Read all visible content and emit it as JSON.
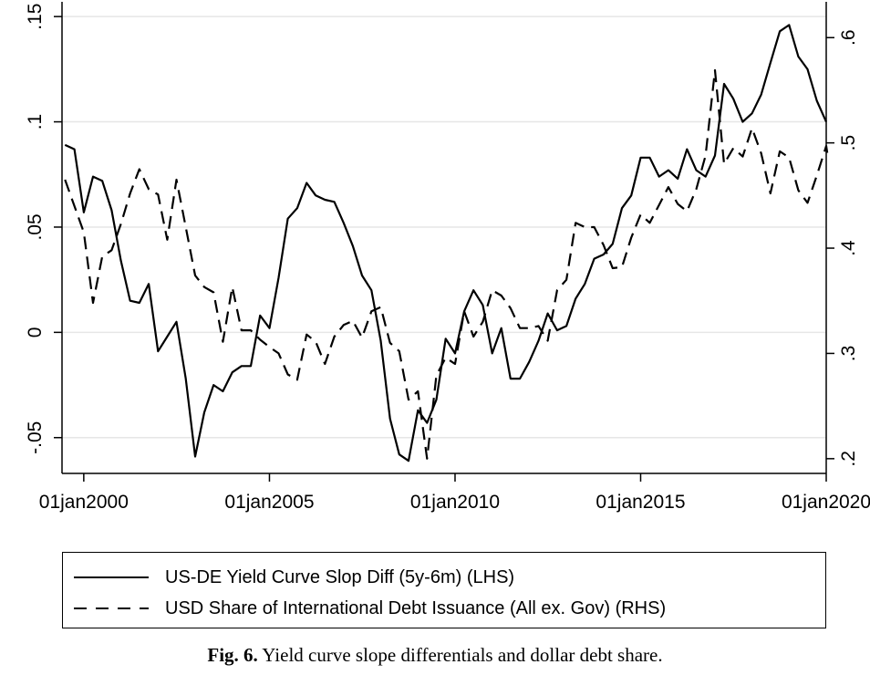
{
  "chart_data": {
    "type": "line",
    "xlim": [
      "1999-06-01",
      "2020-01-01"
    ],
    "x_ticks": [
      "01jan2000",
      "01jan2005",
      "01jan2010",
      "01jan2015",
      "01jan2020"
    ],
    "y_left": {
      "ticks": [
        "-.05",
        "0",
        ".05",
        ".1",
        ".15"
      ],
      "lim": [
        -0.067,
        0.157
      ]
    },
    "y_right": {
      "ticks": [
        ".2",
        ".3",
        ".4",
        ".5",
        ".6"
      ],
      "lim": [
        0.186,
        0.634
      ]
    },
    "grid": true,
    "legend_position": "bottom",
    "series": [
      {
        "name": "US-DE Yield Curve Slop Diff (5y-6m) (LHS)",
        "axis": "left",
        "style": "solid",
        "points": [
          [
            "1999-07-01",
            0.089
          ],
          [
            "1999-10-01",
            0.087
          ],
          [
            "2000-01-01",
            0.057
          ],
          [
            "2000-04-01",
            0.074
          ],
          [
            "2000-07-01",
            0.072
          ],
          [
            "2000-10-01",
            0.058
          ],
          [
            "2001-01-01",
            0.034
          ],
          [
            "2001-04-01",
            0.015
          ],
          [
            "2001-07-01",
            0.014
          ],
          [
            "2001-10-01",
            0.023
          ],
          [
            "2002-01-01",
            -0.009
          ],
          [
            "2002-04-01",
            -0.002
          ],
          [
            "2002-07-01",
            0.005
          ],
          [
            "2002-10-01",
            -0.022
          ],
          [
            "2003-01-01",
            -0.059
          ],
          [
            "2003-04-01",
            -0.038
          ],
          [
            "2003-07-01",
            -0.025
          ],
          [
            "2003-10-01",
            -0.028
          ],
          [
            "2004-01-01",
            -0.019
          ],
          [
            "2004-04-01",
            -0.016
          ],
          [
            "2004-07-01",
            -0.016
          ],
          [
            "2004-10-01",
            0.008
          ],
          [
            "2005-01-01",
            0.002
          ],
          [
            "2005-04-01",
            0.026
          ],
          [
            "2005-07-01",
            0.054
          ],
          [
            "2005-10-01",
            0.059
          ],
          [
            "2006-01-01",
            0.071
          ],
          [
            "2006-04-01",
            0.065
          ],
          [
            "2006-07-01",
            0.063
          ],
          [
            "2006-10-01",
            0.062
          ],
          [
            "2007-01-01",
            0.052
          ],
          [
            "2007-04-01",
            0.041
          ],
          [
            "2007-07-01",
            0.027
          ],
          [
            "2007-10-01",
            0.02
          ],
          [
            "2008-01-01",
            -0.004
          ],
          [
            "2008-04-01",
            -0.041
          ],
          [
            "2008-07-01",
            -0.058
          ],
          [
            "2008-10-01",
            -0.061
          ],
          [
            "2009-01-01",
            -0.037
          ],
          [
            "2009-04-01",
            -0.043
          ],
          [
            "2009-07-01",
            -0.032
          ],
          [
            "2009-10-01",
            -0.003
          ],
          [
            "2010-01-01",
            -0.01
          ],
          [
            "2010-04-01",
            0.01
          ],
          [
            "2010-07-01",
            0.02
          ],
          [
            "2010-10-01",
            0.013
          ],
          [
            "2011-01-01",
            -0.01
          ],
          [
            "2011-04-01",
            0.002
          ],
          [
            "2011-07-01",
            -0.022
          ],
          [
            "2011-10-01",
            -0.022
          ],
          [
            "2012-01-01",
            -0.014
          ],
          [
            "2012-04-01",
            -0.004
          ],
          [
            "2012-07-01",
            0.009
          ],
          [
            "2012-10-01",
            0.001
          ],
          [
            "2013-01-01",
            0.003
          ],
          [
            "2013-04-01",
            0.016
          ],
          [
            "2013-07-01",
            0.023
          ],
          [
            "2013-10-01",
            0.035
          ],
          [
            "2014-01-01",
            0.037
          ],
          [
            "2014-04-01",
            0.042
          ],
          [
            "2014-07-01",
            0.059
          ],
          [
            "2014-10-01",
            0.065
          ],
          [
            "2015-01-01",
            0.083
          ],
          [
            "2015-04-01",
            0.083
          ],
          [
            "2015-07-01",
            0.074
          ],
          [
            "2015-10-01",
            0.077
          ],
          [
            "2016-01-01",
            0.073
          ],
          [
            "2016-04-01",
            0.087
          ],
          [
            "2016-07-01",
            0.077
          ],
          [
            "2016-10-01",
            0.074
          ],
          [
            "2017-01-01",
            0.084
          ],
          [
            "2017-04-01",
            0.118
          ],
          [
            "2017-07-01",
            0.111
          ],
          [
            "2017-10-01",
            0.1
          ],
          [
            "2018-01-01",
            0.104
          ],
          [
            "2018-04-01",
            0.113
          ],
          [
            "2018-07-01",
            0.128
          ],
          [
            "2018-10-01",
            0.143
          ],
          [
            "2019-01-01",
            0.146
          ],
          [
            "2019-04-01",
            0.131
          ],
          [
            "2019-07-01",
            0.125
          ],
          [
            "2019-10-01",
            0.11
          ],
          [
            "2020-01-01",
            0.1
          ]
        ]
      },
      {
        "name": "USD Share of International Debt Issuance (All ex. Gov) (RHS)",
        "axis": "right",
        "style": "dashed",
        "points": [
          [
            "1999-07-01",
            0.465
          ],
          [
            "1999-10-01",
            0.44
          ],
          [
            "2000-01-01",
            0.415
          ],
          [
            "2000-04-01",
            0.348
          ],
          [
            "2000-07-01",
            0.392
          ],
          [
            "2000-10-01",
            0.398
          ],
          [
            "2001-01-01",
            0.423
          ],
          [
            "2001-04-01",
            0.452
          ],
          [
            "2001-07-01",
            0.475
          ],
          [
            "2001-10-01",
            0.456
          ],
          [
            "2002-01-01",
            0.451
          ],
          [
            "2002-04-01",
            0.408
          ],
          [
            "2002-07-01",
            0.465
          ],
          [
            "2002-10-01",
            0.42
          ],
          [
            "2003-01-01",
            0.374
          ],
          [
            "2003-04-01",
            0.363
          ],
          [
            "2003-07-01",
            0.358
          ],
          [
            "2003-10-01",
            0.311
          ],
          [
            "2004-01-01",
            0.363
          ],
          [
            "2004-04-01",
            0.322
          ],
          [
            "2004-07-01",
            0.322
          ],
          [
            "2004-10-01",
            0.313
          ],
          [
            "2005-01-01",
            0.306
          ],
          [
            "2005-04-01",
            0.3
          ],
          [
            "2005-07-01",
            0.28
          ],
          [
            "2005-10-01",
            0.275
          ],
          [
            "2006-01-01",
            0.318
          ],
          [
            "2006-04-01",
            0.311
          ],
          [
            "2006-07-01",
            0.29
          ],
          [
            "2006-10-01",
            0.316
          ],
          [
            "2007-01-01",
            0.327
          ],
          [
            "2007-04-01",
            0.331
          ],
          [
            "2007-07-01",
            0.315
          ],
          [
            "2007-10-01",
            0.34
          ],
          [
            "2008-01-01",
            0.344
          ],
          [
            "2008-04-01",
            0.31
          ],
          [
            "2008-07-01",
            0.302
          ],
          [
            "2008-10-01",
            0.256
          ],
          [
            "2009-01-01",
            0.264
          ],
          [
            "2009-04-01",
            0.2
          ],
          [
            "2009-07-01",
            0.279
          ],
          [
            "2009-10-01",
            0.296
          ],
          [
            "2010-01-01",
            0.29
          ],
          [
            "2010-04-01",
            0.34
          ],
          [
            "2010-07-01",
            0.316
          ],
          [
            "2010-10-01",
            0.33
          ],
          [
            "2011-01-01",
            0.36
          ],
          [
            "2011-04-01",
            0.355
          ],
          [
            "2011-07-01",
            0.343
          ],
          [
            "2011-10-01",
            0.324
          ],
          [
            "2012-01-01",
            0.324
          ],
          [
            "2012-04-01",
            0.326
          ],
          [
            "2012-07-01",
            0.312
          ],
          [
            "2012-10-01",
            0.36
          ],
          [
            "2013-01-01",
            0.37
          ],
          [
            "2013-04-01",
            0.424
          ],
          [
            "2013-07-01",
            0.42
          ],
          [
            "2013-10-01",
            0.42
          ],
          [
            "2014-01-01",
            0.403
          ],
          [
            "2014-04-01",
            0.381
          ],
          [
            "2014-07-01",
            0.382
          ],
          [
            "2014-10-01",
            0.41
          ],
          [
            "2015-01-01",
            0.432
          ],
          [
            "2015-04-01",
            0.424
          ],
          [
            "2015-07-01",
            0.441
          ],
          [
            "2015-10-01",
            0.458
          ],
          [
            "2016-01-01",
            0.442
          ],
          [
            "2016-04-01",
            0.435
          ],
          [
            "2016-07-01",
            0.456
          ],
          [
            "2016-10-01",
            0.488
          ],
          [
            "2017-01-01",
            0.569
          ],
          [
            "2017-04-01",
            0.48
          ],
          [
            "2017-07-01",
            0.495
          ],
          [
            "2017-10-01",
            0.487
          ],
          [
            "2018-01-01",
            0.514
          ],
          [
            "2018-04-01",
            0.49
          ],
          [
            "2018-07-01",
            0.452
          ],
          [
            "2018-10-01",
            0.492
          ],
          [
            "2019-01-01",
            0.486
          ],
          [
            "2019-04-01",
            0.455
          ],
          [
            "2019-07-01",
            0.443
          ],
          [
            "2019-10-01",
            0.469
          ],
          [
            "2020-01-01",
            0.497
          ],
          [
            "2020-01-20",
            0.485
          ]
        ]
      }
    ]
  },
  "caption": {
    "label": "Fig. 6.",
    "text": "Yield curve slope differentials and dollar debt share."
  }
}
